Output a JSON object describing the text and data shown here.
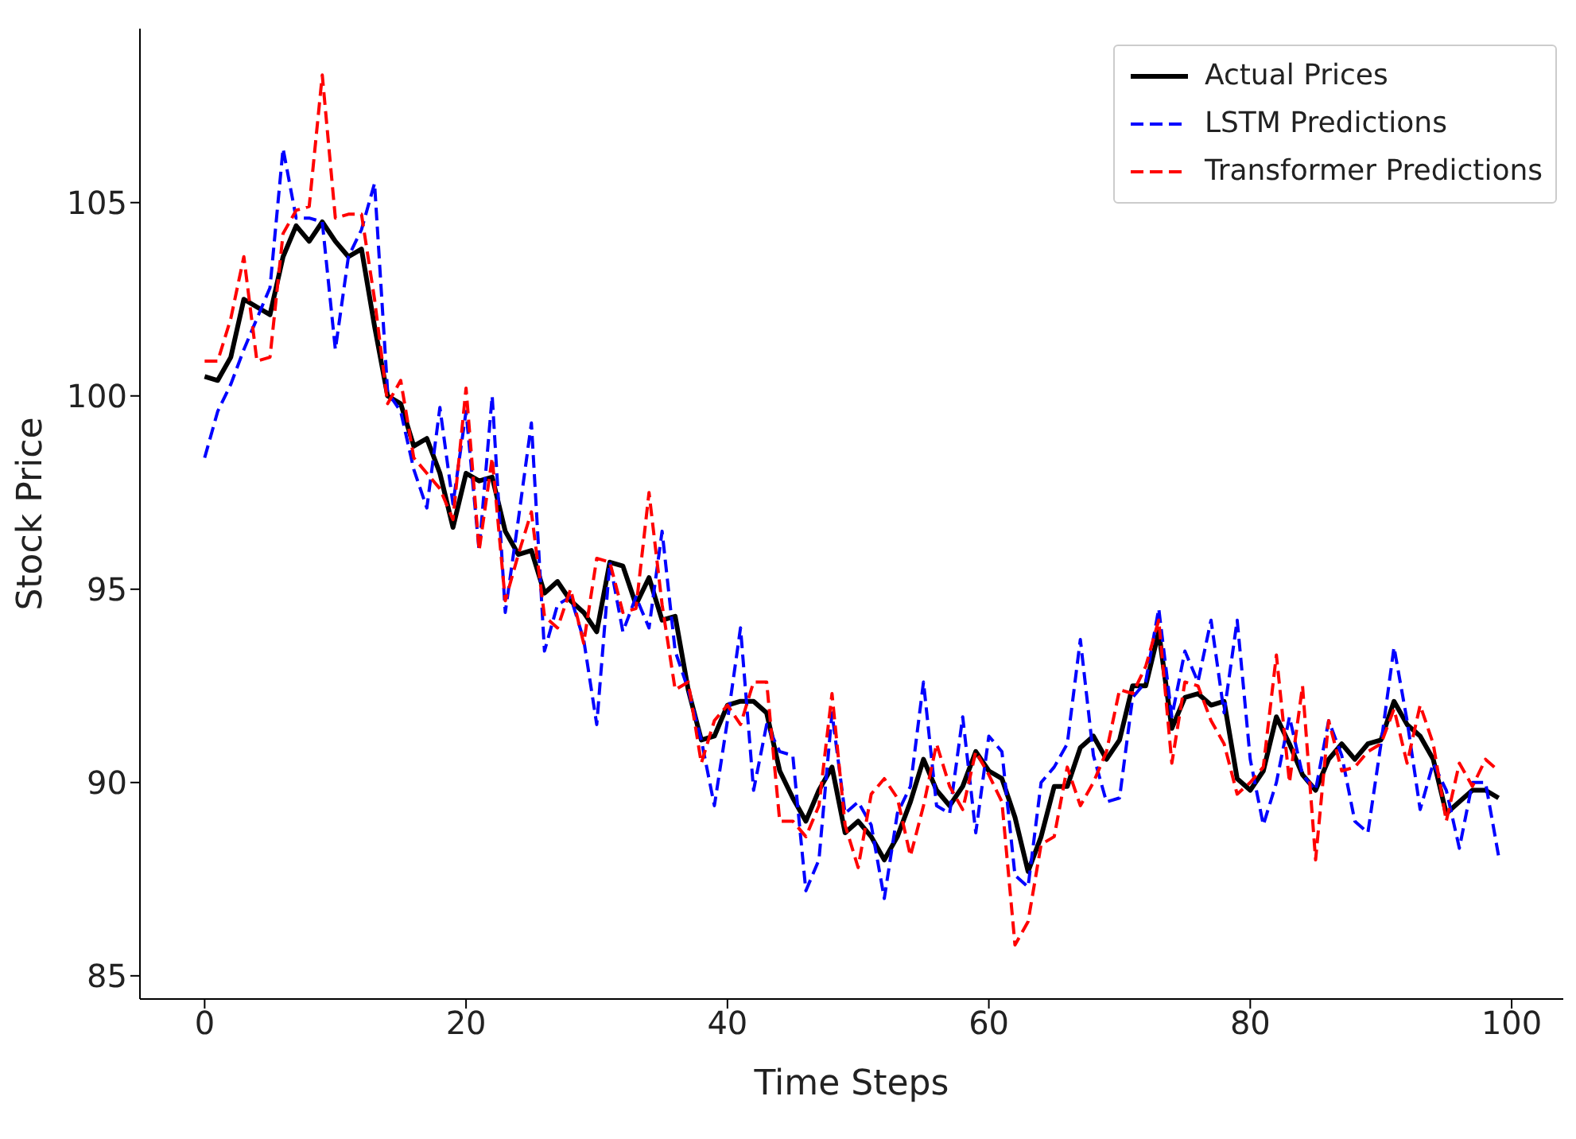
{
  "chart_data": {
    "type": "line",
    "xlabel": "Time Steps",
    "ylabel": "Stock Price",
    "x": [
      0,
      1,
      2,
      3,
      4,
      5,
      6,
      7,
      8,
      9,
      10,
      11,
      12,
      13,
      14,
      15,
      16,
      17,
      18,
      19,
      20,
      21,
      22,
      23,
      24,
      25,
      26,
      27,
      28,
      29,
      30,
      31,
      32,
      33,
      34,
      35,
      36,
      37,
      38,
      39,
      40,
      41,
      42,
      43,
      44,
      45,
      46,
      47,
      48,
      49,
      50,
      51,
      52,
      53,
      54,
      55,
      56,
      57,
      58,
      59,
      60,
      61,
      62,
      63,
      64,
      65,
      66,
      67,
      68,
      69,
      70,
      71,
      72,
      73,
      74,
      75,
      76,
      77,
      78,
      79,
      80,
      81,
      82,
      83,
      84,
      85,
      86,
      87,
      88,
      89,
      90,
      91,
      92,
      93,
      94,
      95,
      96,
      97,
      98,
      99
    ],
    "series": [
      {
        "name": "Actual Prices",
        "color": "#000000",
        "line_style": "solid",
        "values": [
          100.5,
          100.4,
          101.0,
          102.5,
          102.3,
          102.1,
          103.6,
          104.4,
          104.0,
          104.5,
          104.0,
          103.6,
          103.8,
          101.8,
          100.0,
          99.8,
          98.7,
          98.9,
          98.0,
          96.6,
          98.0,
          97.8,
          97.9,
          96.5,
          95.9,
          96.0,
          94.9,
          95.2,
          94.7,
          94.4,
          93.9,
          95.7,
          95.6,
          94.6,
          95.3,
          94.2,
          94.3,
          92.4,
          91.1,
          91.2,
          92.0,
          92.1,
          92.1,
          91.8,
          90.3,
          89.6,
          89.0,
          89.8,
          90.4,
          88.7,
          89.0,
          88.6,
          88.0,
          88.6,
          89.5,
          90.6,
          89.8,
          89.4,
          89.9,
          90.8,
          90.3,
          90.1,
          89.1,
          87.7,
          88.6,
          89.9,
          89.9,
          90.9,
          91.2,
          90.6,
          91.1,
          92.5,
          92.5,
          93.9,
          91.4,
          92.2,
          92.3,
          92.0,
          92.1,
          90.1,
          89.8,
          90.3,
          91.7,
          91.0,
          90.2,
          89.8,
          90.6,
          91.0,
          90.6,
          91.0,
          91.1,
          92.1,
          91.5,
          91.2,
          90.6,
          89.2,
          89.5,
          89.8,
          89.8,
          89.6
        ]
      },
      {
        "name": "LSTM Predictions",
        "color": "#0000ff",
        "line_style": "dashed",
        "values": [
          98.4,
          99.6,
          100.3,
          101.2,
          102.0,
          102.8,
          106.4,
          104.6,
          104.6,
          104.5,
          101.2,
          103.6,
          104.3,
          105.5,
          100.1,
          99.6,
          98.1,
          97.1,
          99.7,
          97.2,
          99.6,
          96.0,
          100.0,
          94.4,
          96.8,
          99.3,
          93.4,
          94.6,
          94.8,
          93.7,
          91.5,
          95.7,
          93.9,
          94.8,
          94.0,
          96.5,
          93.4,
          92.4,
          91.1,
          89.4,
          91.6,
          94.0,
          89.8,
          91.5,
          90.8,
          90.7,
          87.2,
          88.0,
          91.8,
          89.2,
          89.5,
          88.9,
          87.0,
          89.2,
          89.9,
          92.6,
          89.4,
          89.2,
          91.7,
          88.7,
          91.2,
          90.8,
          87.6,
          87.3,
          90.0,
          90.4,
          91.0,
          93.7,
          90.7,
          89.5,
          89.6,
          92.2,
          92.6,
          94.5,
          91.7,
          93.4,
          92.6,
          94.2,
          91.8,
          94.2,
          90.6,
          88.9,
          90.0,
          91.7,
          90.2,
          89.8,
          91.6,
          90.7,
          89.0,
          88.7,
          91.0,
          93.5,
          91.6,
          89.3,
          90.5,
          89.8,
          88.3,
          90.0,
          90.0,
          88.1
        ]
      },
      {
        "name": "Transformer Predictions",
        "color": "#ff0000",
        "line_style": "dashed",
        "values": [
          100.9,
          100.9,
          102.0,
          103.6,
          100.9,
          101.0,
          104.2,
          104.8,
          104.9,
          108.3,
          104.6,
          104.7,
          104.7,
          102.5,
          99.8,
          100.4,
          98.4,
          98.0,
          97.6,
          96.8,
          100.2,
          96.0,
          98.4,
          94.7,
          95.9,
          97.0,
          94.3,
          94.0,
          95.0,
          93.6,
          95.8,
          95.7,
          94.4,
          94.5,
          97.5,
          94.6,
          92.4,
          92.6,
          90.5,
          91.6,
          92.0,
          91.5,
          92.6,
          92.6,
          89.0,
          89.0,
          88.6,
          89.4,
          92.3,
          88.9,
          87.8,
          89.7,
          90.1,
          89.6,
          88.1,
          89.4,
          91.0,
          89.9,
          89.3,
          90.8,
          90.2,
          89.5,
          85.8,
          86.4,
          88.4,
          88.6,
          90.4,
          89.4,
          90.0,
          90.8,
          92.4,
          92.3,
          93.0,
          94.2,
          90.5,
          92.6,
          92.5,
          91.6,
          91.0,
          89.7,
          90.0,
          90.4,
          93.3,
          90.0,
          92.5,
          88.0,
          91.6,
          90.3,
          90.4,
          90.8,
          91.0,
          91.9,
          90.5,
          92.0,
          91.0,
          89.0,
          90.5,
          89.9,
          90.6,
          90.3
        ]
      }
    ],
    "xlim": [
      -4.95,
      103.95
    ],
    "xticks": [
      0,
      20,
      40,
      60,
      80,
      100
    ],
    "ylim": [
      84.4,
      109.5
    ],
    "yticks": [
      85,
      90,
      95,
      100,
      105
    ],
    "legend": "top right",
    "grid": false,
    "marker": "none"
  }
}
